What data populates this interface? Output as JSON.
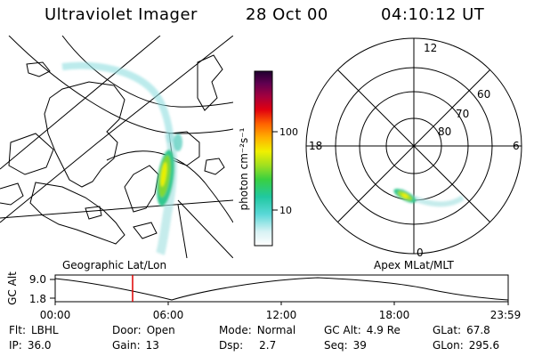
{
  "header": {
    "instrument": "Ultraviolet Imager",
    "date": "28 Oct 00",
    "time": "04:10:12 UT"
  },
  "colorbar": {
    "unit_label": "photon cm⁻²s⁻¹",
    "ticks": [
      "100",
      "10"
    ]
  },
  "map_left": {
    "label": "Geographic Lat/Lon"
  },
  "map_right": {
    "label": "Apex MLat/MLT",
    "mlt_labels": {
      "top": "12",
      "bottom": "0",
      "left": "18",
      "right": "6"
    },
    "lat_labels": [
      "60",
      "70",
      "80"
    ]
  },
  "timeline": {
    "ylabel": "GC Alt",
    "y_ticks": [
      "9.0",
      "1.8"
    ],
    "x_ticks": [
      "00:00",
      "06:00",
      "12:00",
      "18:00",
      "23:59"
    ],
    "marker_time": "04:10"
  },
  "info": {
    "row1": [
      {
        "label": "Flt:",
        "value": "LBHL"
      },
      {
        "label": "Door:",
        "value": "Open"
      },
      {
        "label": "Mode:",
        "value": "Normal"
      },
      {
        "label": "GC Alt:",
        "value": "4.9 Re"
      },
      {
        "label": "GLat:",
        "value": "67.8"
      }
    ],
    "row2": [
      {
        "label": "IP:",
        "value": "36.0"
      },
      {
        "label": "Gain:",
        "value": "13"
      },
      {
        "label": "Dsp:",
        "value": "2.7"
      },
      {
        "label": "Seq:",
        "value": "39"
      },
      {
        "label": "GLon:",
        "value": "295.6"
      }
    ]
  },
  "colors": {
    "marker": "#dd0000"
  }
}
